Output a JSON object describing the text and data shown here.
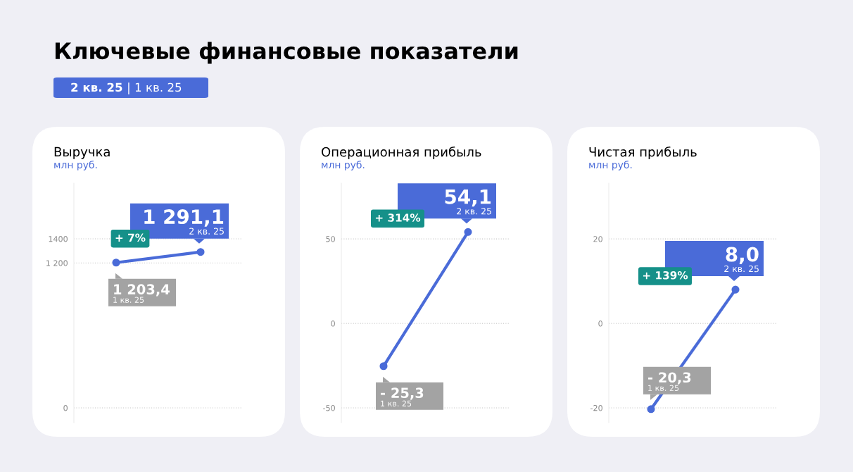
{
  "chart_data": [
    {
      "type": "line",
      "title": "Выручка",
      "subtitle": "млн руб.",
      "categories": [
        null,
        null
      ],
      "series": [
        {
          "color": "#4a6bd8",
          "values": [
            1203.4,
            1291.1
          ],
          "value_labels": [
            "1 203,4",
            "1 291,1"
          ]
        }
      ],
      "ylim": [
        -122.5,
        1861
      ],
      "yticks": [
        0,
        {
          "value": 1200,
          "label": "1 200"
        },
        1400
      ],
      "grid": "y",
      "marker": "circle",
      "tick_labels": "y",
      "annotations": [
        "+ 7%",
        "1 кв. 25",
        "2 кв. 25",
        "Ключевые финансовые показатели",
        "2 кв. 25 | 1 кв. 25"
      ]
    },
    {
      "type": "line",
      "title": "Операционная прибыль",
      "subtitle": "млн руб.",
      "categories": [
        null,
        null
      ],
      "series": [
        {
          "color": "#4a6bd8",
          "values": [
            -25.3,
            54.1
          ],
          "value_labels": [
            "- 25,3",
            "54,1"
          ]
        }
      ],
      "ylim": [
        -58.75,
        83
      ],
      "yticks": [
        -50,
        0,
        50
      ],
      "grid": "y",
      "marker": "circle",
      "tick_labels": "y",
      "annotations": [
        "+ 314%",
        "1 кв. 25",
        "2 кв. 25"
      ]
    },
    {
      "type": "line",
      "title": "Чистая прибыль",
      "subtitle": "млн руб.",
      "categories": [
        null,
        null
      ],
      "series": [
        {
          "color": "#4a6bd8",
          "values": [
            -20.3,
            8.0
          ],
          "value_labels": [
            "- 20,3",
            "8,0"
          ]
        }
      ],
      "ylim": [
        -23.5,
        33.2
      ],
      "yticks": [
        -20,
        0,
        20
      ],
      "grid": "y",
      "marker": "circle",
      "tick_labels": "y",
      "annotations": [
        "+ 139%",
        "1 кв. 25",
        "2 кв. 25"
      ]
    }
  ]
}
